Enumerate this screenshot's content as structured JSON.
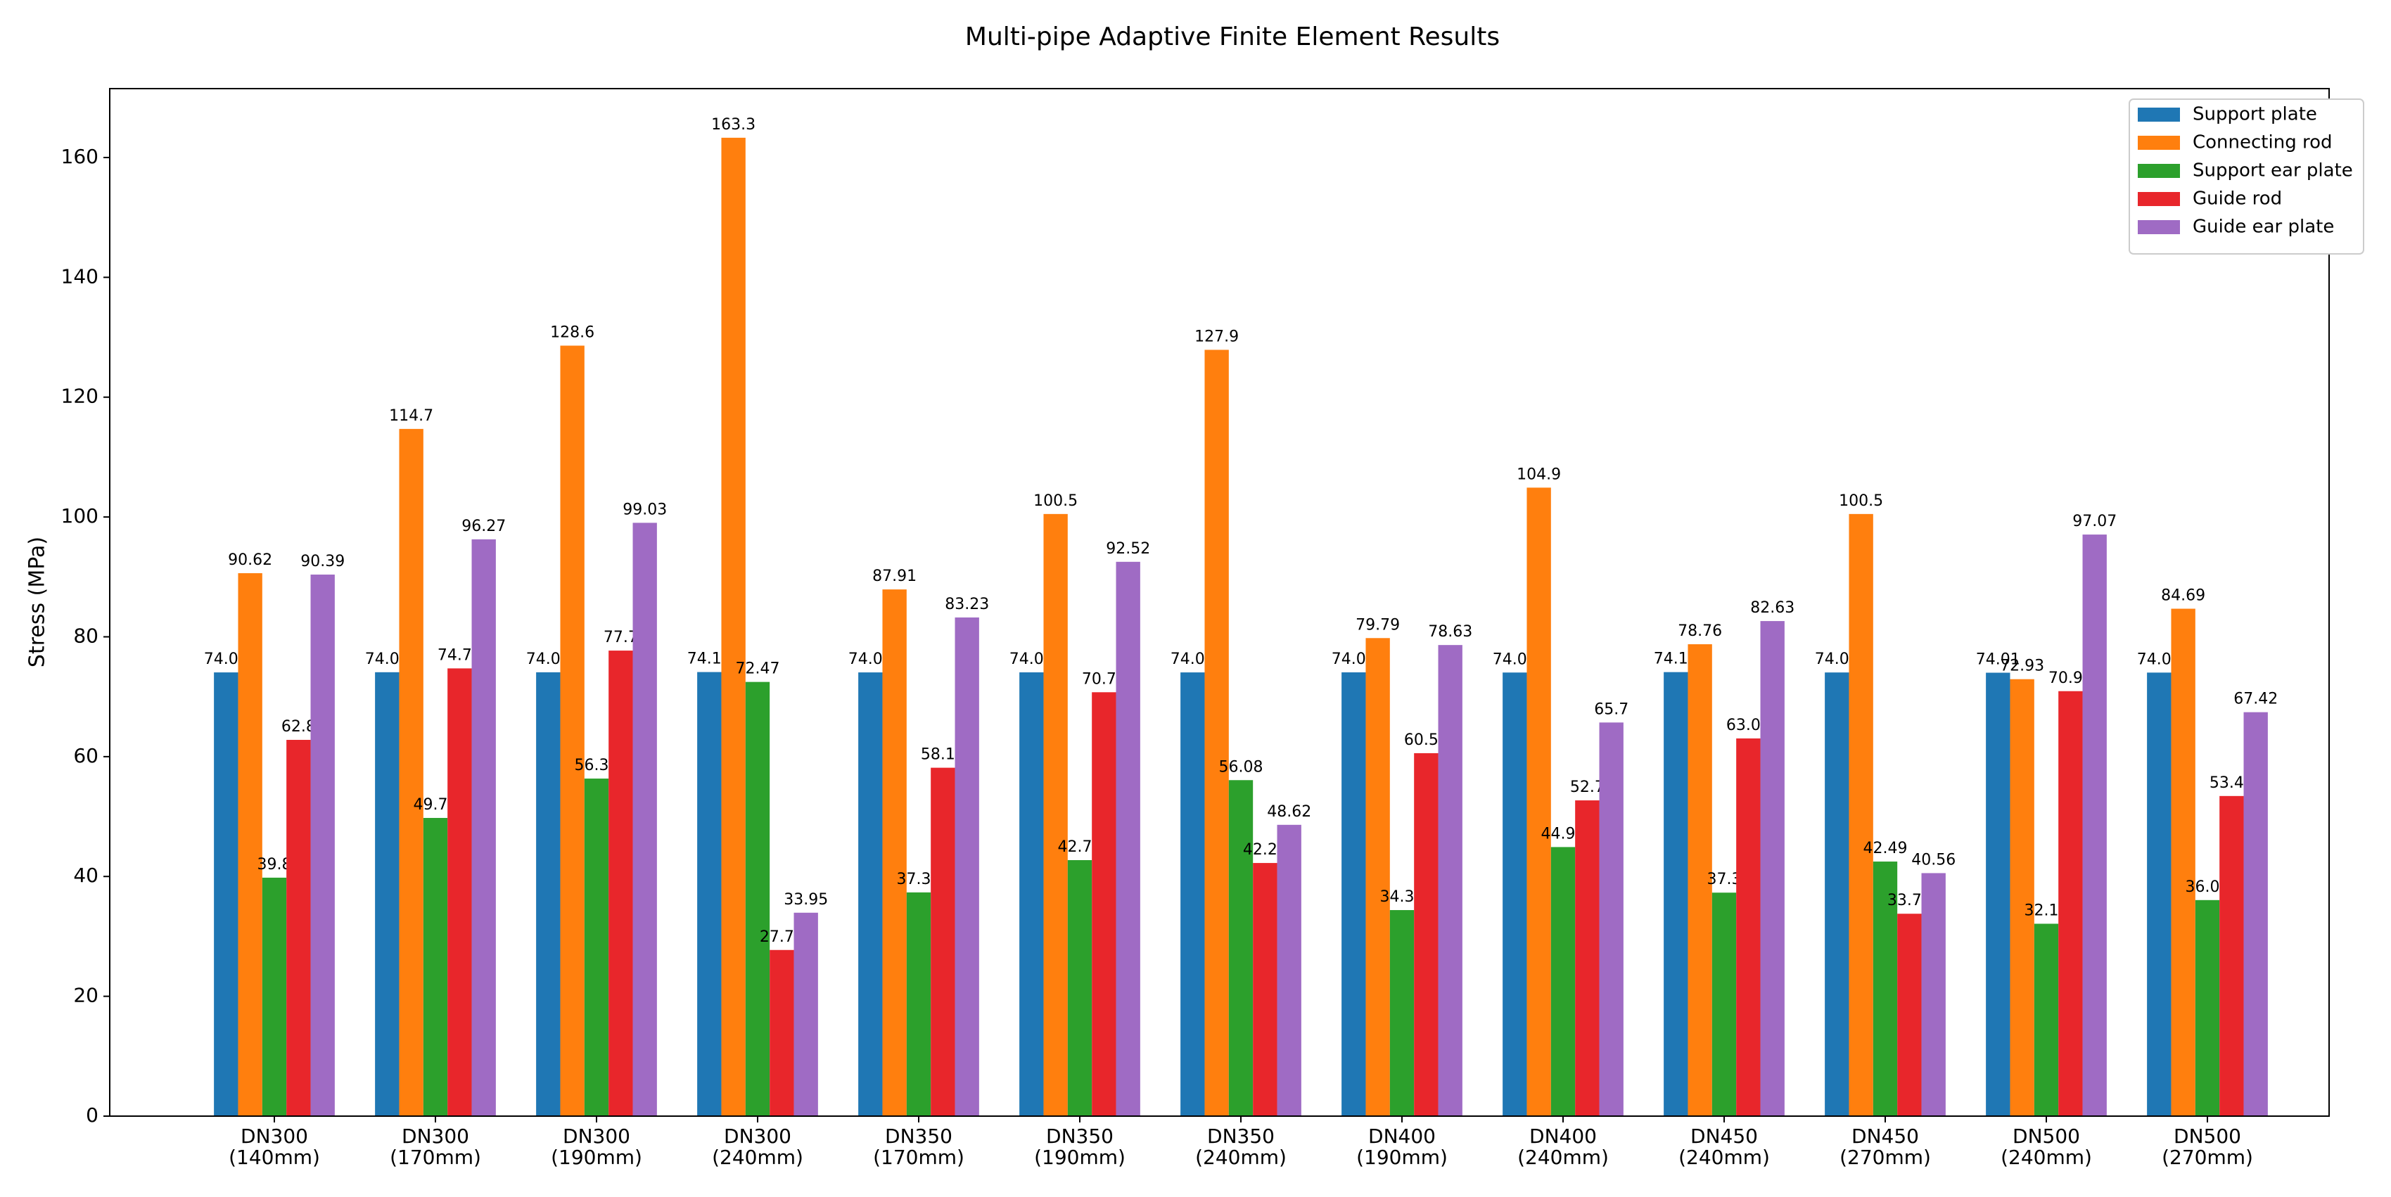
{
  "chart_data": {
    "type": "bar",
    "title": "Multi-pipe Adaptive Finite Element Results",
    "y_label": "Stress (MPa)",
    "categories": [
      "DN300\n(140mm)",
      "DN300\n(170mm)",
      "DN300\n(190mm)",
      "DN300\n(240mm)",
      "DN350\n(170mm)",
      "DN350\n(190mm)",
      "DN350\n(240mm)",
      "DN400\n(190mm)",
      "DN400\n(240mm)",
      "DN450\n(240mm)",
      "DN450\n(270mm)",
      "DN500\n(240mm)",
      "DN500\n(270mm)"
    ],
    "series": [
      {
        "name": "Support plate",
        "color": "#1f77b4",
        "values": [
          74.06,
          74.09,
          74.08,
          74.12,
          74.06,
          74.07,
          74.06,
          74.07,
          74.04,
          74.11,
          74.05,
          74.01,
          74.03
        ]
      },
      {
        "name": "Connecting rod",
        "color": "#ff7f0e",
        "values": [
          90.62,
          114.7,
          128.6,
          163.3,
          87.91,
          100.5,
          127.9,
          79.79,
          104.9,
          78.76,
          100.5,
          72.93,
          84.69
        ]
      },
      {
        "name": "Support ear plate",
        "color": "#2ca02c",
        "values": [
          39.8,
          49.77,
          56.34,
          72.47,
          37.34,
          42.73,
          56.08,
          34.39,
          44.91,
          37.3,
          42.49,
          32.11,
          36.06
        ]
      },
      {
        "name": "Guide rod",
        "color": "#e8262b",
        "values": [
          62.8,
          74.73,
          77.7,
          27.73,
          58.15,
          70.75,
          42.25,
          60.58,
          52.7,
          63.04,
          33.78,
          70.93,
          53.43
        ]
      },
      {
        "name": "Guide ear plate",
        "color": "#9f6bc4",
        "values": [
          90.39,
          96.27,
          99.03,
          33.95,
          83.23,
          92.52,
          48.62,
          78.63,
          65.7,
          82.63,
          40.56,
          97.07,
          67.42
        ]
      }
    ],
    "ylim": [
      0,
      171.5
    ],
    "yticks": [
      0,
      20,
      40,
      60,
      80,
      100,
      120,
      140,
      160
    ],
    "grid": false,
    "legend": "upper right",
    "data_labels": true
  }
}
